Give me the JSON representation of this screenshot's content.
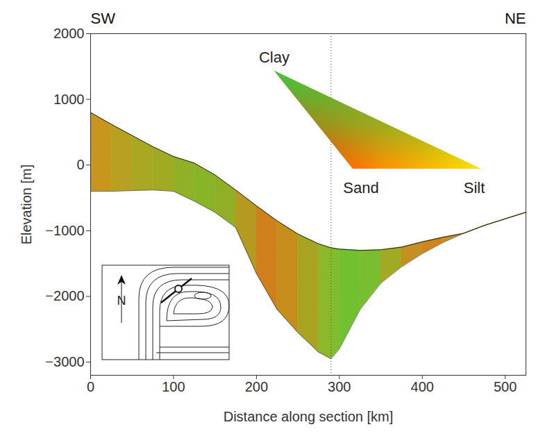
{
  "chart_data": {
    "type": "area",
    "x_label": "Distance along section [km]",
    "y_label": "Elevation [m]",
    "annotations": [
      "SW",
      "NE"
    ],
    "ternary_labels": [
      "Clay",
      "Sand",
      "Silt"
    ],
    "inset_label": "N",
    "section_x": 290,
    "x": [
      0,
      25,
      50,
      75,
      100,
      125,
      150,
      175,
      200,
      225,
      250,
      275,
      290,
      300,
      325,
      350,
      375,
      400,
      425,
      450,
      475,
      500,
      525
    ],
    "top": [
      800,
      620,
      450,
      280,
      130,
      30,
      -150,
      -380,
      -620,
      -850,
      -1050,
      -1200,
      -1260,
      -1280,
      -1300,
      -1290,
      -1250,
      -1170,
      -1100,
      -1040,
      -920,
      -820,
      -720
    ],
    "bottom": [
      -400,
      -400,
      -390,
      -380,
      -400,
      -550,
      -720,
      -950,
      -1650,
      -2200,
      -2550,
      -2850,
      -2950,
      -2800,
      -2200,
      -1800,
      -1550,
      -1350,
      -1180,
      -1040,
      -920,
      -820,
      -720
    ],
    "colors": [
      "#c8961e",
      "#b8a020",
      "#a8a822",
      "#a0aa22",
      "#90b025",
      "#88b428",
      "#90ae26",
      "#b49a20",
      "#d0801a",
      "#c68c1c",
      "#a8a422",
      "#8cb82a",
      "#80bc2c",
      "#70c030",
      "#78be2e",
      "#a0aa24",
      "#c49020",
      "#d0841c",
      "#c8901e",
      "#c8901e",
      "#c8901e",
      "#c8901e"
    ],
    "xlim": [
      0,
      525
    ],
    "ylim": [
      -3200,
      2000
    ],
    "xticks": [
      0,
      100,
      200,
      300,
      400,
      500
    ],
    "yticks": [
      -3000,
      -2000,
      -1000,
      0,
      1000,
      2000
    ]
  }
}
